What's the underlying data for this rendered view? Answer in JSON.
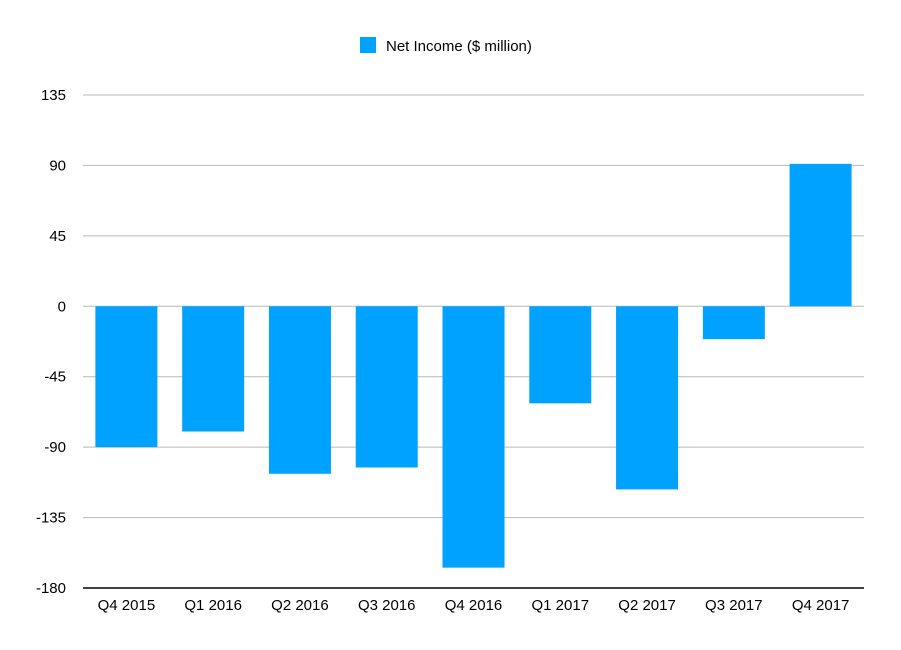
{
  "chart_data": {
    "type": "bar",
    "title": "",
    "xlabel": "",
    "ylabel": "",
    "categories": [
      "Q4 2015",
      "Q1 2016",
      "Q2 2016",
      "Q3 2016",
      "Q4 2016",
      "Q1 2017",
      "Q2 2017",
      "Q3 2017",
      "Q4 2017"
    ],
    "series": [
      {
        "name": "Net Income ($ million)",
        "color": "#00a2ff",
        "values": [
          -90,
          -80,
          -107,
          -103,
          -167,
          -62,
          -117,
          -21,
          91
        ]
      }
    ],
    "ylim": [
      -180,
      135
    ],
    "yticks": [
      "135",
      "90",
      "45",
      "0",
      "-45",
      "-90",
      "-135",
      "-180"
    ],
    "grid": true,
    "legend_position": "top-center"
  }
}
